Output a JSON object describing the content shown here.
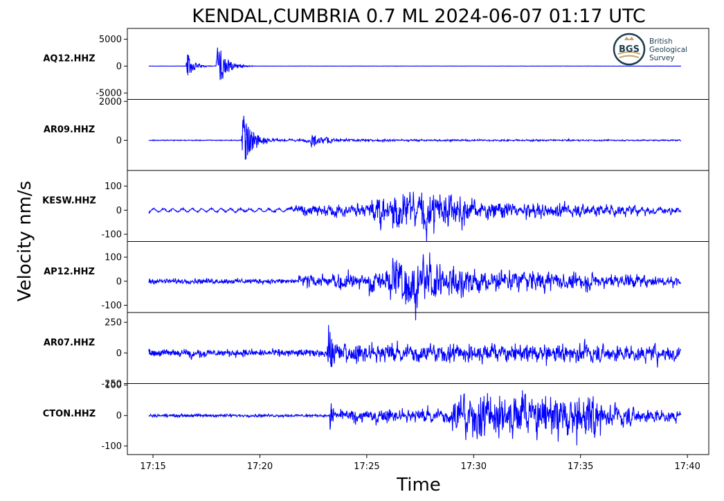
{
  "chart_data": {
    "type": "line",
    "title": "KENDAL,CUMBRIA 0.7 ML   2024-06-07 01:17 UTC",
    "xlabel": "Time",
    "ylabel": "Velocity nm/s",
    "x_ticks": [
      "17:15",
      "17:20",
      "17:25",
      "17:30",
      "17:35",
      "17:40"
    ],
    "xlim": [
      "17:13.8",
      "17:41"
    ],
    "trace_span": [
      "17:14.8",
      "17:39.7"
    ],
    "line_color": "#0000ff",
    "grid": false,
    "logo": {
      "lines": [
        "British",
        "Geological",
        "Survey"
      ],
      "mark": "BGS"
    },
    "series": [
      {
        "name": "AQ12.HHZ",
        "ylim": [
          -6200,
          7000
        ],
        "y_ticks": [
          5000,
          0,
          -5000
        ],
        "y_tick_labels": [
          "5000",
          "0",
          "-5000"
        ],
        "noise": 20,
        "bursts": [
          {
            "t": "17:16.6",
            "amp": 3200,
            "decay": 0.3
          },
          {
            "t": "17:18.0",
            "amp": 6400,
            "decay": 0.4
          }
        ],
        "bands": []
      },
      {
        "name": "AR09.HHZ",
        "ylim": [
          -1550,
          2100
        ],
        "y_ticks": [
          2000,
          0
        ],
        "y_tick_labels": [
          "2000",
          "0"
        ],
        "noise": 20,
        "bursts": [
          {
            "t": "17:19.2",
            "amp": 1900,
            "decay": 0.45
          },
          {
            "t": "17:22.4",
            "amp": 420,
            "decay": 0.9
          }
        ],
        "bands": [
          {
            "from": "17:19.8",
            "to": "17:39.7",
            "amp_start": 80,
            "amp_end": 25
          }
        ]
      },
      {
        "name": "KESW.HHZ",
        "ylim": [
          -130,
          165
        ],
        "y_ticks": [
          100,
          0,
          -100
        ],
        "y_tick_labels": [
          "100",
          "0",
          "-100"
        ],
        "noise": 3,
        "slow": {
          "from": "17:14.8",
          "to": "17:21.3",
          "amp": 6
        },
        "bursts": [],
        "bands": [
          {
            "from": "17:21.3",
            "to": "17:25.5",
            "amp_start": 22,
            "amp_end": 40
          },
          {
            "from": "17:25.5",
            "to": "17:29.8",
            "amp_start": 120,
            "amp_end": 80
          },
          {
            "from": "17:29.8",
            "to": "17:39.7",
            "amp_start": 45,
            "amp_end": 18
          }
        ]
      },
      {
        "name": "AP12.HHZ",
        "ylim": [
          -130,
          165
        ],
        "y_ticks": [
          100,
          0,
          -100
        ],
        "y_tick_labels": [
          "100",
          "0",
          "-100"
        ],
        "noise": 9,
        "bursts": [],
        "bands": [
          {
            "from": "17:21.8",
            "to": "17:26.0",
            "amp_start": 25,
            "amp_end": 55
          },
          {
            "from": "17:26.0",
            "to": "17:30.0",
            "amp_start": 130,
            "amp_end": 70
          },
          {
            "from": "17:30.0",
            "to": "17:39.7",
            "amp_start": 55,
            "amp_end": 22
          }
        ]
      },
      {
        "name": "AR07.HHZ",
        "ylim": [
          -250,
          330
        ],
        "y_ticks": [
          250,
          0,
          -250
        ],
        "y_tick_labels": [
          "250",
          "0",
          "-250"
        ],
        "noise": 25,
        "bursts": [
          {
            "t": "17:23.2",
            "amp": 290,
            "decay": 0.25
          }
        ],
        "bands": [
          {
            "from": "17:16.2",
            "to": "17:17.5",
            "amp_start": 25,
            "amp_end": 25
          },
          {
            "from": "17:23.4",
            "to": "17:39.7",
            "amp_start": 90,
            "amp_end": 75
          }
        ]
      },
      {
        "name": "CTON.HHZ",
        "ylim": [
          -128,
          105
        ],
        "y_ticks": [
          100,
          0,
          -100
        ],
        "y_tick_labels": [
          "100",
          "0",
          "-100"
        ],
        "noise": 4,
        "bursts": [
          {
            "t": "17:23.3",
            "amp": 75,
            "decay": 0.15
          }
        ],
        "bands": [
          {
            "from": "17:23.4",
            "to": "17:29.0",
            "amp_start": 22,
            "amp_end": 30
          },
          {
            "from": "17:29.0",
            "to": "17:36.0",
            "amp_start": 90,
            "amp_end": 80
          },
          {
            "from": "17:36.0",
            "to": "17:39.7",
            "amp_start": 40,
            "amp_end": 22
          }
        ]
      }
    ]
  }
}
